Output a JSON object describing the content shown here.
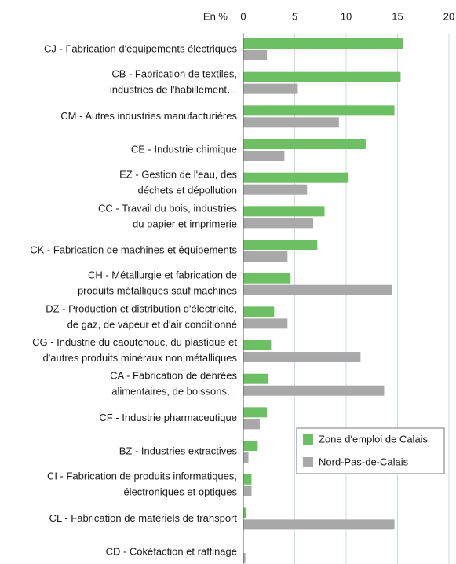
{
  "chart_data": {
    "type": "hbar",
    "axis_label": "En %",
    "categories": [
      "CJ - Fabrication d'équipements électriques",
      "CB - Fabrication de textiles,\nindustries de l'habillement…",
      "CM - Autres industries manufacturières",
      "CE - Industrie chimique",
      "EZ - Gestion de l'eau, des\ndéchets et dépollution",
      "CC - Travail du bois, industries\ndu papier et imprimerie",
      "CK - Fabrication de machines et équipements",
      "CH - Métallurgie et fabrication de\nproduits métalliques sauf machines",
      "DZ - Production et distribution d'électricité,\nde gaz, de vapeur et d'air conditionné",
      "CG - Industrie du caoutchouc, du plastique et\nd'autres produits minéraux non métalliques",
      "CA - Fabrication de denrées\nalimentaires, de boissons…",
      "CF - Industrie pharmaceutique",
      "BZ - Industries extractives",
      "CI - Fabrication de produits informatiques,\nélectroniques et optiques",
      "CL - Fabrication de matériels de transport",
      "CD - Cokéfaction et raffinage"
    ],
    "series": [
      {
        "name": "Zone d'emploi de Calais",
        "color": "#6cbf63",
        "values": [
          15.5,
          15.3,
          14.7,
          11.9,
          10.2,
          7.9,
          7.2,
          4.6,
          3.0,
          2.7,
          2.4,
          2.3,
          1.4,
          0.8,
          0.3,
          0
        ]
      },
      {
        "name": "Nord-Pas-de-Calais",
        "color": "#a8a8a8",
        "values": [
          2.3,
          5.3,
          9.3,
          4.0,
          6.2,
          6.8,
          4.3,
          14.5,
          4.3,
          11.4,
          13.7,
          1.6,
          0.5,
          0.8,
          14.7,
          0.2
        ]
      }
    ],
    "xlim": [
      0,
      20
    ],
    "xticks": [
      0,
      5,
      10,
      15,
      20
    ],
    "grid": true,
    "legend": "lower right"
  }
}
